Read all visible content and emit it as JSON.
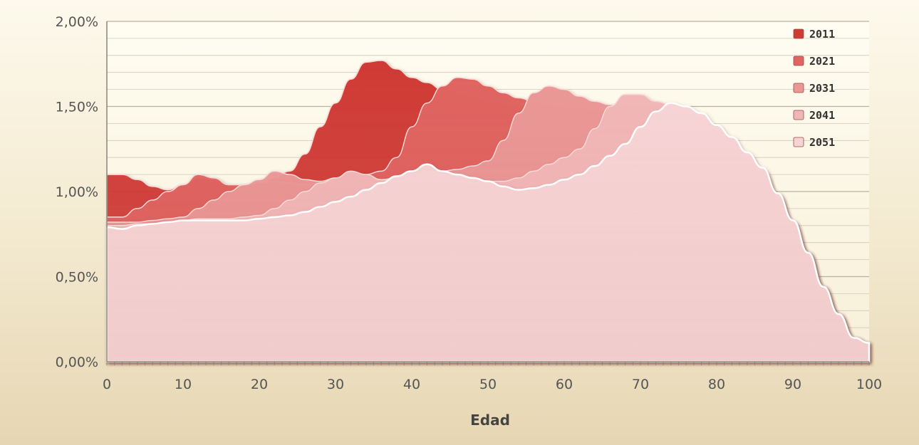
{
  "chart_data": {
    "type": "area",
    "xlabel": "Edad",
    "ylabel": "",
    "xlim": [
      0,
      100
    ],
    "ylim": [
      0,
      0.02
    ],
    "x_ticks": [
      "0",
      "10",
      "20",
      "30",
      "40",
      "50",
      "60",
      "70",
      "80",
      "90",
      "100"
    ],
    "y_ticks": [
      "0,00%",
      "0,50%",
      "1,00%",
      "1,50%",
      "2,00%"
    ],
    "grid": "horizontal",
    "legend_position": "top-right",
    "x": [
      0,
      2,
      4,
      6,
      8,
      10,
      12,
      14,
      16,
      18,
      20,
      22,
      24,
      26,
      28,
      30,
      32,
      34,
      36,
      38,
      40,
      42,
      44,
      46,
      48,
      50,
      52,
      54,
      56,
      58,
      60,
      62,
      64,
      66,
      68,
      70,
      72,
      74,
      76,
      78,
      80,
      82,
      84,
      86,
      88,
      90,
      92,
      94,
      96,
      98,
      100
    ],
    "series": [
      {
        "name": "2011",
        "color": "#d03a35",
        "values": [
          0.011,
          0.011,
          0.0107,
          0.0103,
          0.0101,
          0.0104,
          0.0108,
          0.0107,
          0.0104,
          0.0103,
          0.0104,
          0.0108,
          0.0112,
          0.0122,
          0.0138,
          0.0152,
          0.0166,
          0.0176,
          0.0177,
          0.0172,
          0.0167,
          0.0164,
          0.016,
          0.0157,
          0.0156,
          0.0153,
          0.0152,
          0.015,
          0.0149,
          0.0148,
          0.0148,
          0.0147,
          0.0147,
          0.0146,
          0.0146,
          0.0146,
          0.0148,
          0.015,
          0.0148,
          0.0142,
          0.0134,
          0.0128,
          0.012,
          0.0112,
          0.0098,
          0.0082,
          0.0064,
          0.0044,
          0.0028,
          0.0014,
          0.0011
        ]
      },
      {
        "name": "2021",
        "color": "#e06461",
        "values": [
          0.0085,
          0.0085,
          0.009,
          0.0095,
          0.01,
          0.0104,
          0.011,
          0.0108,
          0.0104,
          0.0104,
          0.0105,
          0.0106,
          0.0105,
          0.0104,
          0.0105,
          0.0107,
          0.0109,
          0.011,
          0.0112,
          0.012,
          0.0138,
          0.0152,
          0.0162,
          0.0167,
          0.0166,
          0.0162,
          0.0158,
          0.0155,
          0.0153,
          0.0151,
          0.015,
          0.0149,
          0.0148,
          0.0148,
          0.0148,
          0.0148,
          0.0149,
          0.015,
          0.0148,
          0.0142,
          0.0134,
          0.0128,
          0.012,
          0.0112,
          0.0098,
          0.0082,
          0.0064,
          0.0044,
          0.0028,
          0.0014,
          0.0011
        ]
      },
      {
        "name": "2031",
        "color": "#ea9796",
        "values": [
          0.0082,
          0.0082,
          0.0082,
          0.0083,
          0.0084,
          0.0085,
          0.009,
          0.0095,
          0.01,
          0.0104,
          0.0107,
          0.0112,
          0.011,
          0.0107,
          0.0106,
          0.0108,
          0.0111,
          0.0108,
          0.0107,
          0.0108,
          0.011,
          0.0111,
          0.0112,
          0.0113,
          0.0115,
          0.0118,
          0.013,
          0.0146,
          0.0158,
          0.0162,
          0.016,
          0.0156,
          0.0153,
          0.0151,
          0.0149,
          0.0148,
          0.0149,
          0.015,
          0.0148,
          0.0142,
          0.0134,
          0.0128,
          0.012,
          0.0112,
          0.0098,
          0.0082,
          0.0064,
          0.0044,
          0.0028,
          0.0014,
          0.0011
        ]
      },
      {
        "name": "2041",
        "color": "#f1b6b6",
        "values": [
          0.008,
          0.008,
          0.0081,
          0.0081,
          0.0082,
          0.0083,
          0.0084,
          0.0084,
          0.0084,
          0.0085,
          0.0086,
          0.009,
          0.0095,
          0.01,
          0.0105,
          0.0108,
          0.0112,
          0.011,
          0.0107,
          0.0106,
          0.0108,
          0.0112,
          0.011,
          0.0106,
          0.0105,
          0.0106,
          0.0106,
          0.0108,
          0.0112,
          0.0116,
          0.012,
          0.0125,
          0.0137,
          0.015,
          0.0157,
          0.0157,
          0.0153,
          0.0151,
          0.0148,
          0.0142,
          0.0134,
          0.0128,
          0.012,
          0.0112,
          0.0098,
          0.0082,
          0.0064,
          0.0044,
          0.0028,
          0.0014,
          0.0011
        ]
      },
      {
        "name": "2051",
        "color": "#f6d3d4",
        "values": [
          0.0079,
          0.0078,
          0.008,
          0.0081,
          0.0082,
          0.0083,
          0.0083,
          0.0083,
          0.0083,
          0.0083,
          0.0084,
          0.0085,
          0.0086,
          0.0088,
          0.0091,
          0.0094,
          0.0097,
          0.0101,
          0.0105,
          0.0109,
          0.0112,
          0.0116,
          0.0112,
          0.011,
          0.0108,
          0.0106,
          0.0103,
          0.0101,
          0.0102,
          0.0104,
          0.0107,
          0.011,
          0.0115,
          0.0121,
          0.0128,
          0.0138,
          0.0147,
          0.0152,
          0.015,
          0.0146,
          0.0139,
          0.0132,
          0.0123,
          0.0114,
          0.0099,
          0.0083,
          0.0064,
          0.0044,
          0.0028,
          0.0014,
          0.0011
        ]
      }
    ]
  }
}
